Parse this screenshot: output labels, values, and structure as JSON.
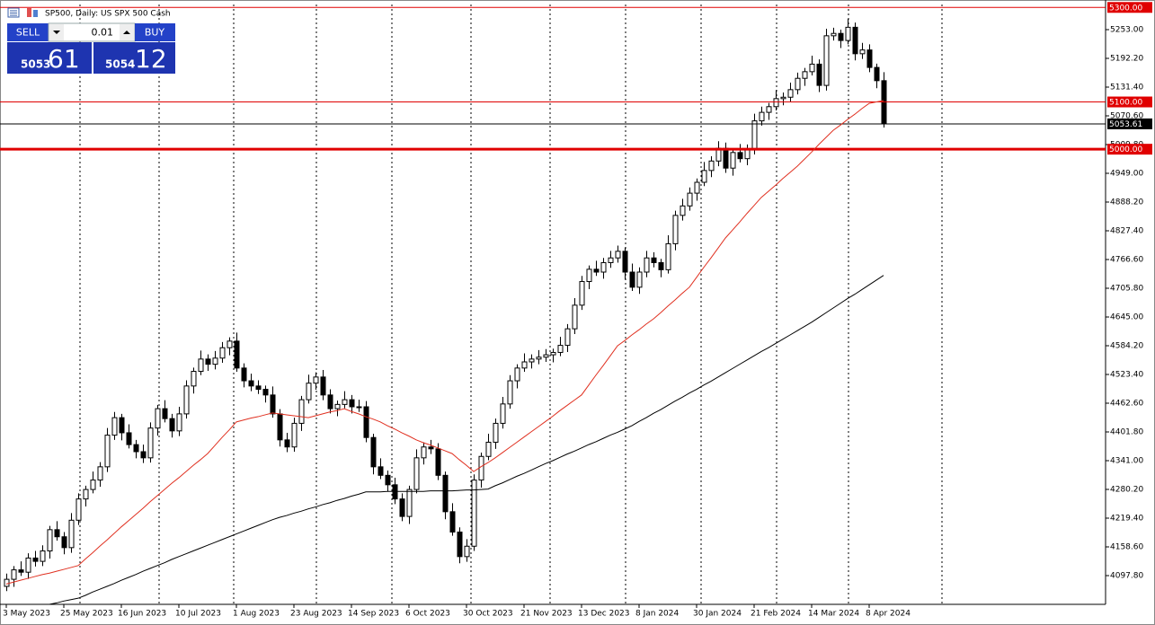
{
  "chart_data": {
    "type": "candlestick",
    "title": "SP500, Daily: US SPX 500 Cash",
    "trade_panel": {
      "sell": "SELL",
      "buy": "BUY",
      "lot": "0.01",
      "bid_main": "5053",
      "bid_pips": "61",
      "ask_main": "5054",
      "ask_pips": "12"
    },
    "categories": [
      "3 May 2023",
      null,
      null,
      null,
      null,
      null,
      null,
      null,
      "25 May 2023",
      null,
      null,
      null,
      null,
      null,
      null,
      null,
      "16 Jun 2023",
      null,
      null,
      null,
      null,
      null,
      null,
      null,
      "10 Jul 2023",
      null,
      null,
      null,
      null,
      null,
      null,
      null,
      "1 Aug 2023",
      null,
      null,
      null,
      null,
      null,
      null,
      null,
      "23 Aug 2023",
      null,
      null,
      null,
      null,
      null,
      null,
      null,
      "14 Sep 2023",
      null,
      null,
      null,
      null,
      null,
      null,
      null,
      "6 Oct 2023",
      null,
      null,
      null,
      null,
      null,
      null,
      null,
      "30 Oct 2023",
      null,
      null,
      null,
      null,
      null,
      null,
      null,
      "21 Nov 2023",
      null,
      null,
      null,
      null,
      null,
      null,
      null,
      "13 Dec 2023",
      null,
      null,
      null,
      null,
      null,
      null,
      null,
      "8 Jan 2024",
      null,
      null,
      null,
      null,
      null,
      null,
      null,
      "30 Jan 2024",
      null,
      null,
      null,
      null,
      null,
      null,
      null,
      "21 Feb 2024",
      null,
      null,
      null,
      null,
      null,
      null,
      null,
      "14 Mar 2024",
      null,
      null,
      null,
      null,
      null,
      null,
      null,
      "8 Apr 2024",
      null,
      null
    ],
    "open": [
      4075,
      4090,
      4110,
      4105,
      4135,
      4128,
      4150,
      4195,
      4180,
      4157,
      4215,
      4260,
      4280,
      4300,
      4328,
      4395,
      4432,
      4400,
      4375,
      4360,
      4347,
      4410,
      4451,
      4430,
      4404,
      4440,
      4499,
      4530,
      4556,
      4545,
      4558,
      4580,
      4594,
      4537,
      4510,
      4499,
      4492,
      4480,
      4440,
      4385,
      4370,
      4420,
      4470,
      4505,
      4518,
      4480,
      4451,
      4460,
      4470,
      4455,
      4455,
      4390,
      4328,
      4310,
      4290,
      4260,
      4223,
      4280,
      4347,
      4370,
      4366,
      4310,
      4233,
      4190,
      4138,
      4160,
      4300,
      4350,
      4380,
      4420,
      4461,
      4510,
      4537,
      4550,
      4556,
      4560,
      4565,
      4570,
      4585,
      4620,
      4670,
      4720,
      4746,
      4740,
      4760,
      4770,
      4784,
      4740,
      4708,
      4740,
      4770,
      4760,
      4745,
      4800,
      4860,
      4880,
      4907,
      4930,
      4955,
      4975,
      5002,
      4960,
      4993,
      4980,
      5000,
      5060,
      5078,
      5090,
      5107,
      5110,
      5126,
      5150,
      5164,
      5180,
      5135,
      5240,
      5245,
      5230,
      5258,
      5202,
      5210,
      5173,
      5145
    ],
    "high": [
      4102,
      4118,
      4128,
      4145,
      4150,
      4162,
      4203,
      4213,
      4190,
      4230,
      4272,
      4288,
      4318,
      4338,
      4410,
      4444,
      4440,
      4418,
      4385,
      4375,
      4422,
      4459,
      4469,
      4440,
      4455,
      4511,
      4538,
      4574,
      4566,
      4573,
      4592,
      4602,
      4612,
      4547,
      4525,
      4511,
      4500,
      4498,
      4450,
      4400,
      4432,
      4478,
      4523,
      4528,
      4533,
      4492,
      4468,
      4488,
      4480,
      4470,
      4467,
      4398,
      4346,
      4320,
      4305,
      4272,
      4288,
      4365,
      4380,
      4385,
      4378,
      4318,
      4251,
      4200,
      4175,
      4312,
      4358,
      4398,
      4430,
      4476,
      4522,
      4545,
      4568,
      4566,
      4575,
      4577,
      4578,
      4603,
      4630,
      4685,
      4732,
      4754,
      4764,
      4770,
      4785,
      4796,
      4792,
      4758,
      4750,
      4785,
      4782,
      4768,
      4818,
      4870,
      4895,
      4919,
      4938,
      4973,
      4985,
      5017,
      5014,
      5001,
      5011,
      5010,
      5075,
      5090,
      5098,
      5125,
      5120,
      5141,
      5162,
      5172,
      5198,
      5190,
      5255,
      5257,
      5253,
      5276,
      5268,
      5225,
      5222,
      5181,
      5163
    ],
    "low": [
      4065,
      4074,
      4097,
      4091,
      4117,
      4118,
      4134,
      4172,
      4143,
      4146,
      4205,
      4244,
      4272,
      4286,
      4317,
      4385,
      4384,
      4367,
      4346,
      4336,
      4337,
      4394,
      4422,
      4390,
      4393,
      4430,
      4483,
      4522,
      4531,
      4534,
      4548,
      4564,
      4529,
      4496,
      4488,
      4482,
      4464,
      4432,
      4371,
      4359,
      4360,
      4404,
      4462,
      4491,
      4469,
      4441,
      4435,
      4452,
      4441,
      4444,
      4380,
      4312,
      4302,
      4276,
      4249,
      4213,
      4207,
      4272,
      4333,
      4355,
      4300,
      4217,
      4182,
      4124,
      4127,
      4150,
      4284,
      4342,
      4366,
      4409,
      4451,
      4494,
      4529,
      4536,
      4545,
      4550,
      4549,
      4562,
      4571,
      4609,
      4660,
      4704,
      4732,
      4726,
      4749,
      4760,
      4724,
      4700,
      4694,
      4729,
      4750,
      4729,
      4737,
      4786,
      4849,
      4870,
      4891,
      4922,
      4941,
      4964,
      4950,
      4944,
      4972,
      4966,
      4989,
      5050,
      5062,
      5082,
      5093,
      5099,
      5116,
      5134,
      5156,
      5121,
      5124,
      5230,
      5214,
      5222,
      5188,
      5191,
      5163,
      5129,
      5046
    ],
    "close": [
      4090,
      4110,
      4105,
      4135,
      4128,
      4150,
      4195,
      4180,
      4157,
      4215,
      4260,
      4280,
      4300,
      4328,
      4395,
      4432,
      4400,
      4375,
      4360,
      4347,
      4410,
      4451,
      4430,
      4404,
      4440,
      4499,
      4530,
      4556,
      4545,
      4558,
      4580,
      4594,
      4537,
      4510,
      4499,
      4492,
      4480,
      4440,
      4385,
      4370,
      4420,
      4470,
      4505,
      4518,
      4480,
      4451,
      4460,
      4470,
      4455,
      4455,
      4390,
      4328,
      4310,
      4290,
      4260,
      4223,
      4280,
      4347,
      4370,
      4366,
      4310,
      4233,
      4190,
      4138,
      4160,
      4300,
      4350,
      4380,
      4420,
      4461,
      4510,
      4537,
      4550,
      4556,
      4560,
      4565,
      4570,
      4585,
      4620,
      4670,
      4720,
      4746,
      4740,
      4760,
      4770,
      4784,
      4740,
      4708,
      4740,
      4770,
      4760,
      4745,
      4800,
      4860,
      4880,
      4907,
      4930,
      4955,
      4975,
      5002,
      4960,
      4993,
      4980,
      5000,
      5060,
      5078,
      5090,
      5107,
      5110,
      5126,
      5150,
      5164,
      5180,
      5135,
      5240,
      5245,
      5230,
      5258,
      5202,
      5210,
      5173,
      5145,
      5053.61
    ],
    "up_color": "#ffffff",
    "down_color": "#000000",
    "outline_color": "#000000",
    "overlays": [
      {
        "color": "#e03020",
        "values": [
          4080,
          4084,
          4088,
          4092,
          4096,
          4100,
          4103,
          4107,
          4111,
          4115,
          4119,
          4133,
          4146,
          4160,
          4173,
          4187,
          4201,
          4214,
          4227,
          4240,
          4254,
          4267,
          4280,
          4293,
          4305,
          4318,
          4331,
          4343,
          4356,
          4373,
          4390,
          4406,
          4423,
          4427,
          4431,
          4434,
          4438,
          4442,
          4440,
          4438,
          4436,
          4434,
          4432,
          4436,
          4440,
          4444,
          4447,
          4451,
          4445,
          4440,
          4434,
          4429,
          4423,
          4415,
          4408,
          4400,
          4393,
          4385,
          4379,
          4374,
          4368,
          4362,
          4356,
          4343,
          4331,
          4318,
          4328,
          4337,
          4347,
          4358,
          4369,
          4380,
          4391,
          4402,
          4413,
          4424,
          4435,
          4447,
          4458,
          4469,
          4480,
          4501,
          4522,
          4542,
          4563,
          4584,
          4595,
          4607,
          4618,
          4630,
          4641,
          4654,
          4668,
          4681,
          4695,
          4708,
          4729,
          4750,
          4770,
          4791,
          4812,
          4829,
          4846,
          4864,
          4881,
          4898,
          4911,
          4924,
          4938,
          4951,
          4964,
          4979,
          4994,
          5010,
          5025,
          5040,
          5051,
          5063,
          5074,
          5086,
          5097,
          5100,
          5103
        ]
      },
      {
        "color": "#000000",
        "values": [
          null,
          null,
          null,
          null,
          null,
          null,
          4037,
          4040,
          4044,
          4047,
          4050,
          4056,
          4063,
          4069,
          4075,
          4081,
          4088,
          4094,
          4100,
          4107,
          4113,
          4119,
          4125,
          4132,
          4138,
          4144,
          4150,
          4156,
          4162,
          4168,
          4174,
          4180,
          4186,
          4192,
          4198,
          4204,
          4210,
          4216,
          4221,
          4225,
          4230,
          4234,
          4239,
          4243,
          4248,
          4252,
          4257,
          4261,
          4266,
          4270,
          4275,
          4275,
          4275,
          4276,
          4276,
          4276,
          4276,
          4276,
          4276,
          4277,
          4277,
          4277,
          4277,
          4278,
          4279,
          4279,
          4280,
          4281,
          4288,
          4294,
          4301,
          4308,
          4314,
          4321,
          4328,
          4335,
          4341,
          4348,
          4355,
          4361,
          4368,
          4375,
          4381,
          4388,
          4395,
          4401,
          4408,
          4415,
          4424,
          4432,
          4441,
          4449,
          4458,
          4467,
          4475,
          4484,
          4492,
          4501,
          4509,
          4518,
          4527,
          4536,
          4545,
          4554,
          4563,
          4572,
          4580,
          4589,
          4598,
          4607,
          4616,
          4625,
          4634,
          4644,
          4654,
          4664,
          4674,
          4684,
          4693,
          4703,
          4713,
          4723,
          4733
        ]
      }
    ],
    "hlines": [
      {
        "value": 5300,
        "label": "5300.00",
        "color": "#e00000",
        "width": 1
      },
      {
        "value": 5100,
        "label": "5100.00",
        "color": "#e00000",
        "width": 1
      },
      {
        "value": 5000,
        "label": "5000.00",
        "color": "#e00000",
        "width": 3
      }
    ],
    "bid_line": {
      "value": 5053.61,
      "label": "5053.61",
      "color": "#000000"
    },
    "ylim": [
      4037.0,
      5306.2
    ],
    "yticks": [
      {
        "value": 5253.0,
        "label": "5253.00"
      },
      {
        "value": 5192.2,
        "label": "5192.20"
      },
      {
        "value": 5131.4,
        "label": "5131.40"
      },
      {
        "value": 5070.6,
        "label": "5070.60"
      },
      {
        "value": 5009.8,
        "label": "5009.80"
      },
      {
        "value": 4949.0,
        "label": "4949.00"
      },
      {
        "value": 4888.2,
        "label": "4888.20"
      },
      {
        "value": 4827.4,
        "label": "4827.40"
      },
      {
        "value": 4766.6,
        "label": "4766.60"
      },
      {
        "value": 4705.8,
        "label": "4705.80"
      },
      {
        "value": 4645.0,
        "label": "4645.00"
      },
      {
        "value": 4584.2,
        "label": "4584.20"
      },
      {
        "value": 4523.4,
        "label": "4523.40"
      },
      {
        "value": 4462.6,
        "label": "4462.60"
      },
      {
        "value": 4401.8,
        "label": "4401.80"
      },
      {
        "value": 4341.0,
        "label": "4341.00"
      },
      {
        "value": 4280.2,
        "label": "4280.20"
      },
      {
        "value": 4219.4,
        "label": "4219.40"
      },
      {
        "value": 4158.6,
        "label": "4158.60"
      },
      {
        "value": 4097.8,
        "label": "4097.80"
      }
    ]
  }
}
